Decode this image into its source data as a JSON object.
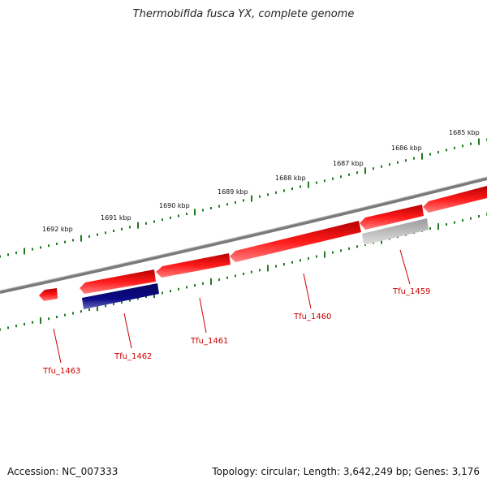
{
  "title": "Thermobifida fusca YX, complete genome",
  "accession_text": "Accession: NC_007333",
  "topology_text": "Topology: circular; Length: 3,642,249 bp; Genes: 3,176",
  "colors": {
    "backbone": "#7a7a7a",
    "tick": "#1f7a1f",
    "gene_forward": "#ee1111",
    "gene_highlight": "#0a0a80",
    "gene_pseudo": "#b8b8b8",
    "gene_label": "#cc0000"
  },
  "kbp_labels": [
    "1692 kbp",
    "1691 kbp",
    "1690 kbp",
    "1689 kbp",
    "1688 kbp",
    "1687 kbp",
    "1686 kbp",
    "1685 kbp"
  ],
  "genes": [
    {
      "name": "Tfu_1459",
      "strand": "reverse",
      "color": "gene_pseudo"
    },
    {
      "name": "Tfu_1460",
      "strand": "reverse",
      "color": "gene_forward"
    },
    {
      "name": "Tfu_1461",
      "strand": "reverse",
      "color": "gene_forward"
    },
    {
      "name": "Tfu_1462",
      "strand": "forward",
      "color": "gene_highlight"
    },
    {
      "name": "Tfu_1463",
      "strand": "reverse",
      "color": "gene_forward"
    }
  ]
}
